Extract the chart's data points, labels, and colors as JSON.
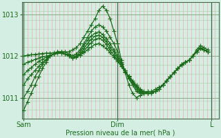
{
  "bg_color": "#d4eee4",
  "plot_bg_color": "#d4eee4",
  "line_color": "#1a6b1a",
  "marker": "+",
  "markersize": 4,
  "linewidth": 0.9,
  "xlabel": "Pression niveau de la mer( hPa )",
  "xlabel_color": "#1a6b1a",
  "tick_color": "#1a6b1a",
  "ylim": [
    1010.5,
    1013.3
  ],
  "yticks": [
    1011,
    1012,
    1013
  ],
  "xtick_labels": [
    "Sam",
    "Dim",
    "L"
  ],
  "xtick_positions": [
    0,
    0.5,
    1.0
  ],
  "series": [
    {
      "x": [
        0.0,
        0.02,
        0.04,
        0.06,
        0.08,
        0.1,
        0.12,
        0.14,
        0.16,
        0.18,
        0.2,
        0.22,
        0.24,
        0.26,
        0.28,
        0.3,
        0.32,
        0.34,
        0.36,
        0.38,
        0.4,
        0.42,
        0.44,
        0.46,
        0.48,
        0.5,
        0.52,
        0.54,
        0.56,
        0.58,
        0.6,
        0.62,
        0.64,
        0.66,
        0.68,
        0.7,
        0.72,
        0.74,
        0.76,
        0.78,
        0.8,
        0.82,
        0.84,
        0.86,
        0.88,
        0.9,
        0.92,
        0.94,
        0.96,
        0.98
      ],
      "y": [
        1010.7,
        1010.9,
        1011.1,
        1011.3,
        1011.5,
        1011.7,
        1011.85,
        1012.0,
        1012.05,
        1012.1,
        1012.1,
        1012.1,
        1012.1,
        1012.15,
        1012.2,
        1012.3,
        1012.45,
        1012.6,
        1012.75,
        1012.9,
        1013.1,
        1013.2,
        1013.1,
        1012.9,
        1012.6,
        1012.3,
        1011.9,
        1011.6,
        1011.3,
        1011.1,
        1011.0,
        1011.05,
        1011.1,
        1011.15,
        1011.15,
        1011.2,
        1011.25,
        1011.3,
        1011.4,
        1011.5,
        1011.6,
        1011.7,
        1011.8,
        1011.85,
        1011.9,
        1012.0,
        1012.15,
        1012.25,
        1012.2,
        1012.15
      ]
    },
    {
      "x": [
        0.0,
        0.02,
        0.04,
        0.06,
        0.08,
        0.1,
        0.12,
        0.14,
        0.16,
        0.18,
        0.2,
        0.22,
        0.24,
        0.26,
        0.28,
        0.3,
        0.32,
        0.34,
        0.36,
        0.38,
        0.4,
        0.42,
        0.44,
        0.46,
        0.48,
        0.5,
        0.52,
        0.54,
        0.56,
        0.58,
        0.6,
        0.62,
        0.64,
        0.66,
        0.68,
        0.7,
        0.72,
        0.74,
        0.76,
        0.78,
        0.8,
        0.82,
        0.84,
        0.86,
        0.88,
        0.9,
        0.92,
        0.94,
        0.96,
        0.98
      ],
      "y": [
        1011.0,
        1011.15,
        1011.3,
        1011.5,
        1011.65,
        1011.8,
        1011.9,
        1012.0,
        1012.05,
        1012.1,
        1012.1,
        1012.1,
        1012.05,
        1012.0,
        1012.05,
        1012.15,
        1012.3,
        1012.45,
        1012.6,
        1012.7,
        1012.75,
        1012.7,
        1012.6,
        1012.45,
        1012.3,
        1012.1,
        1011.85,
        1011.65,
        1011.45,
        1011.3,
        1011.15,
        1011.1,
        1011.1,
        1011.1,
        1011.1,
        1011.15,
        1011.2,
        1011.3,
        1011.4,
        1011.5,
        1011.6,
        1011.7,
        1011.8,
        1011.85,
        1011.9,
        1012.0,
        1012.1,
        1012.2,
        1012.15,
        1012.1
      ]
    },
    {
      "x": [
        0.0,
        0.02,
        0.04,
        0.06,
        0.08,
        0.1,
        0.12,
        0.14,
        0.16,
        0.18,
        0.2,
        0.22,
        0.24,
        0.26,
        0.28,
        0.3,
        0.32,
        0.34,
        0.36,
        0.38,
        0.4,
        0.42,
        0.44,
        0.46,
        0.48,
        0.5,
        0.52,
        0.54,
        0.56,
        0.58,
        0.6,
        0.62,
        0.64,
        0.66,
        0.68,
        0.7,
        0.72,
        0.74,
        0.76,
        0.78,
        0.8,
        0.82,
        0.84,
        0.86,
        0.88,
        0.9,
        0.92,
        0.94,
        0.96,
        0.98
      ],
      "y": [
        1011.3,
        1011.45,
        1011.55,
        1011.65,
        1011.75,
        1011.85,
        1011.92,
        1012.0,
        1012.05,
        1012.1,
        1012.1,
        1012.05,
        1012.0,
        1011.95,
        1012.0,
        1012.1,
        1012.25,
        1012.38,
        1012.48,
        1012.55,
        1012.58,
        1012.52,
        1012.42,
        1012.3,
        1012.15,
        1012.0,
        1011.82,
        1011.65,
        1011.48,
        1011.35,
        1011.2,
        1011.12,
        1011.1,
        1011.1,
        1011.1,
        1011.15,
        1011.2,
        1011.3,
        1011.4,
        1011.5,
        1011.6,
        1011.7,
        1011.78,
        1011.85,
        1011.9,
        1012.0,
        1012.1,
        1012.18,
        1012.15,
        1012.1
      ]
    },
    {
      "x": [
        0.0,
        0.02,
        0.04,
        0.06,
        0.08,
        0.1,
        0.12,
        0.14,
        0.16,
        0.18,
        0.2,
        0.22,
        0.24,
        0.26,
        0.28,
        0.3,
        0.32,
        0.34,
        0.36,
        0.38,
        0.4,
        0.42,
        0.44,
        0.46,
        0.48,
        0.5,
        0.52,
        0.54,
        0.56,
        0.58,
        0.6,
        0.62,
        0.64,
        0.66,
        0.68,
        0.7,
        0.72,
        0.74,
        0.76,
        0.78,
        0.8,
        0.82,
        0.84,
        0.86,
        0.88,
        0.9,
        0.92,
        0.94,
        0.96,
        0.98
      ],
      "y": [
        1011.55,
        1011.65,
        1011.72,
        1011.8,
        1011.87,
        1011.92,
        1011.97,
        1012.0,
        1012.05,
        1012.08,
        1012.08,
        1012.05,
        1012.0,
        1011.95,
        1011.98,
        1012.05,
        1012.18,
        1012.3,
        1012.4,
        1012.48,
        1012.5,
        1012.45,
        1012.35,
        1012.22,
        1012.1,
        1011.95,
        1011.8,
        1011.65,
        1011.5,
        1011.38,
        1011.25,
        1011.15,
        1011.1,
        1011.1,
        1011.12,
        1011.15,
        1011.2,
        1011.3,
        1011.4,
        1011.5,
        1011.6,
        1011.7,
        1011.78,
        1011.85,
        1011.9,
        1012.0,
        1012.1,
        1012.18,
        1012.15,
        1012.1
      ]
    },
    {
      "x": [
        0.0,
        0.02,
        0.04,
        0.06,
        0.08,
        0.1,
        0.12,
        0.14,
        0.16,
        0.18,
        0.2,
        0.22,
        0.24,
        0.26,
        0.28,
        0.3,
        0.32,
        0.34,
        0.36,
        0.38,
        0.4,
        0.42,
        0.44,
        0.46,
        0.48,
        0.5,
        0.52,
        0.54,
        0.56,
        0.58,
        0.6,
        0.62,
        0.64,
        0.66,
        0.68,
        0.7,
        0.72,
        0.74,
        0.76,
        0.78,
        0.8,
        0.82,
        0.84,
        0.86,
        0.88,
        0.9,
        0.92,
        0.94,
        0.96,
        0.98
      ],
      "y": [
        1011.8,
        1011.85,
        1011.88,
        1011.92,
        1011.95,
        1011.98,
        1012.0,
        1012.02,
        1012.05,
        1012.07,
        1012.07,
        1012.05,
        1012.0,
        1011.95,
        1011.97,
        1012.02,
        1012.12,
        1012.22,
        1012.32,
        1012.4,
        1012.43,
        1012.38,
        1012.28,
        1012.15,
        1012.02,
        1011.9,
        1011.75,
        1011.62,
        1011.5,
        1011.38,
        1011.28,
        1011.18,
        1011.12,
        1011.1,
        1011.12,
        1011.15,
        1011.2,
        1011.3,
        1011.4,
        1011.5,
        1011.6,
        1011.7,
        1011.78,
        1011.85,
        1011.9,
        1012.0,
        1012.1,
        1012.18,
        1012.15,
        1012.1
      ]
    },
    {
      "x": [
        0.0,
        0.02,
        0.04,
        0.06,
        0.08,
        0.1,
        0.12,
        0.14,
        0.16,
        0.18,
        0.2,
        0.22,
        0.24,
        0.26,
        0.28,
        0.3,
        0.32,
        0.34,
        0.36,
        0.38,
        0.4,
        0.42,
        0.44,
        0.46,
        0.48,
        0.5,
        0.52,
        0.54,
        0.56,
        0.58,
        0.6,
        0.62,
        0.64,
        0.66,
        0.68,
        0.7,
        0.72,
        0.74,
        0.76,
        0.78,
        0.8,
        0.82,
        0.84,
        0.86,
        0.88,
        0.9,
        0.92,
        0.94,
        0.96,
        0.98
      ],
      "y": [
        1012.0,
        1012.02,
        1012.03,
        1012.04,
        1012.05,
        1012.06,
        1012.07,
        1012.07,
        1012.08,
        1012.08,
        1012.07,
        1012.05,
        1012.02,
        1012.0,
        1012.0,
        1012.02,
        1012.08,
        1012.15,
        1012.22,
        1012.28,
        1012.3,
        1012.25,
        1012.18,
        1012.08,
        1011.97,
        1011.87,
        1011.75,
        1011.62,
        1011.52,
        1011.4,
        1011.3,
        1011.2,
        1011.15,
        1011.12,
        1011.12,
        1011.15,
        1011.2,
        1011.3,
        1011.4,
        1011.5,
        1011.6,
        1011.7,
        1011.78,
        1011.85,
        1011.9,
        1012.0,
        1012.1,
        1012.18,
        1012.15,
        1012.1
      ]
    }
  ],
  "n_vgrid": 50,
  "hlines": [
    1011,
    1012,
    1013
  ],
  "vline_positions": [
    0.0,
    0.5,
    1.0
  ]
}
